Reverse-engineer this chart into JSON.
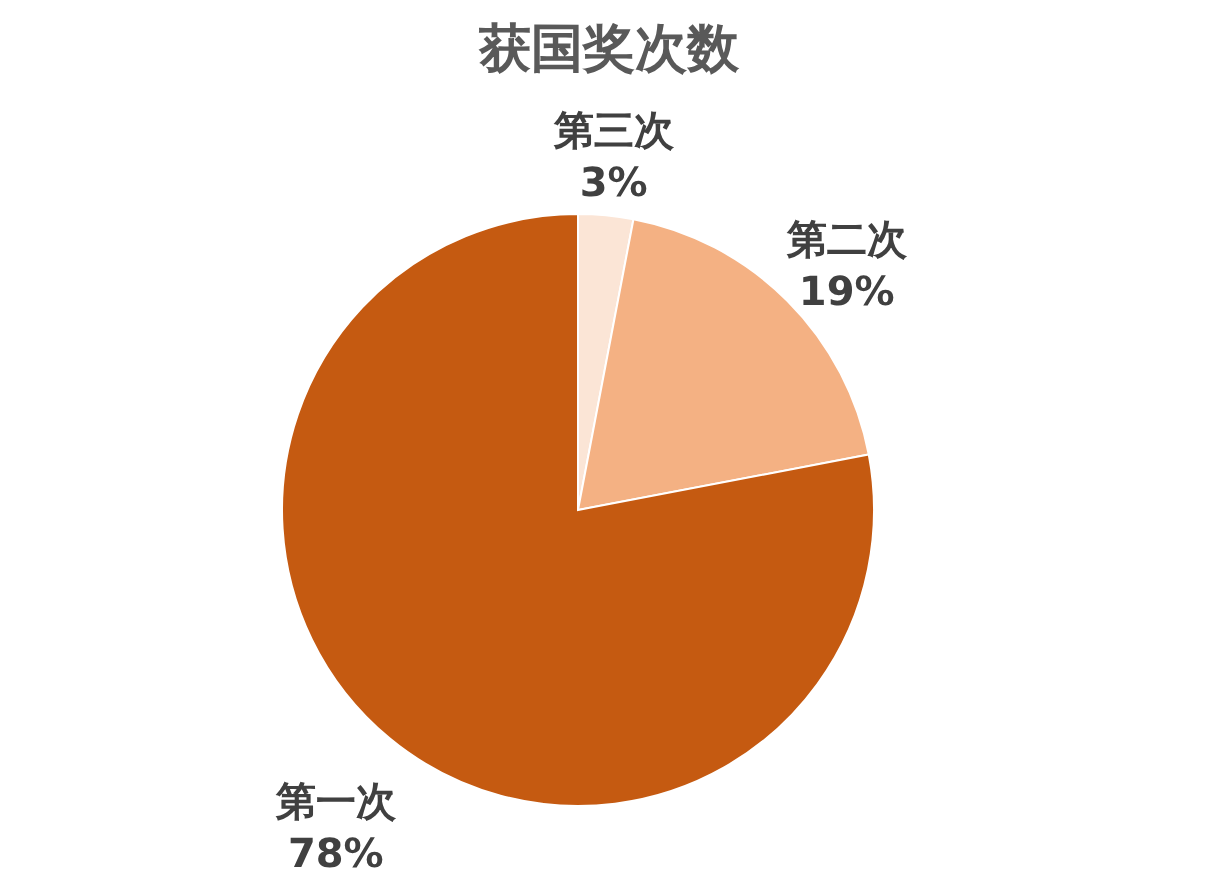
{
  "chart_data": {
    "type": "pie",
    "title": "获国奖次数",
    "categories": [
      "第三次",
      "第二次",
      "第一次"
    ],
    "values": [
      3,
      19,
      78
    ],
    "value_labels": [
      "3%",
      "19%",
      "78%"
    ],
    "colors": [
      "#fbe5d6",
      "#f4b183",
      "#c55a11"
    ]
  }
}
